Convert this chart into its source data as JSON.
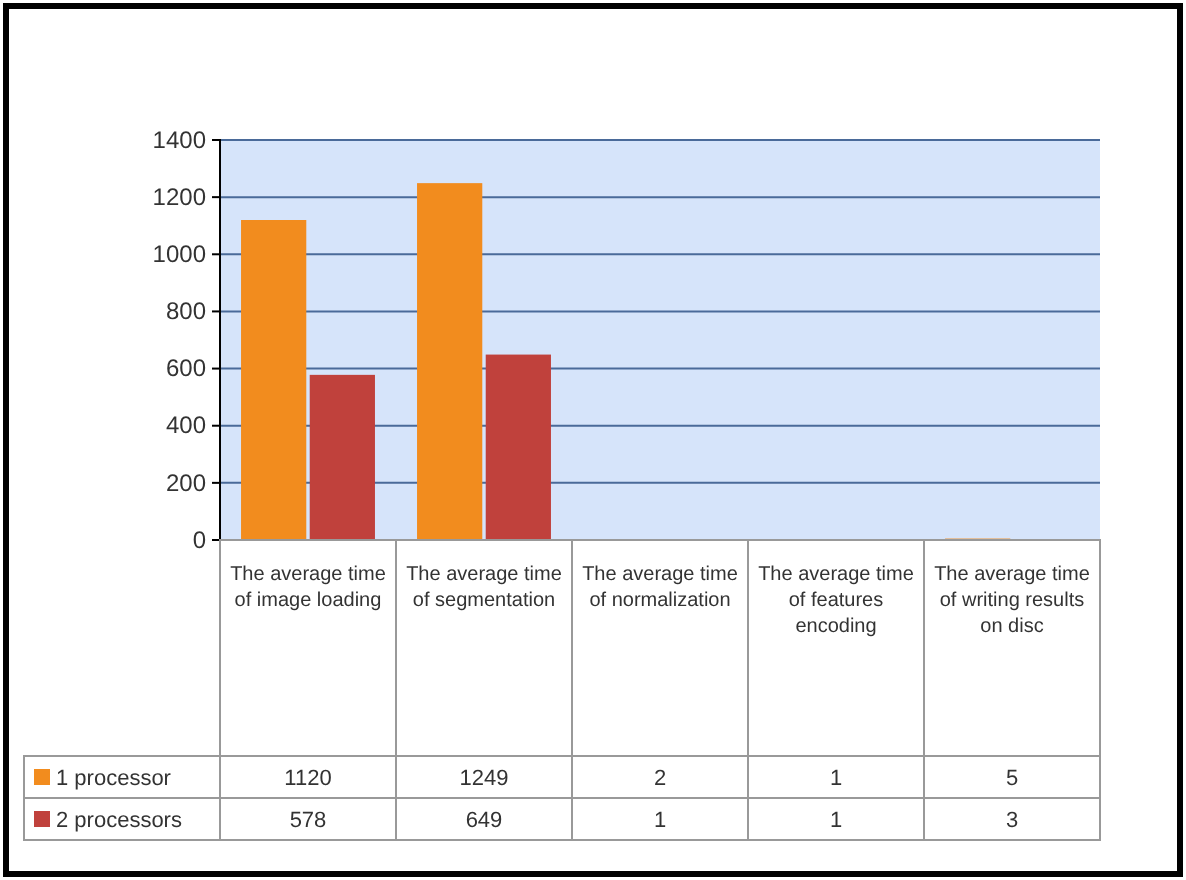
{
  "chart_data": {
    "type": "bar",
    "categories": [
      "The average time of image loading",
      "The average time of segmentation",
      "The average time of normalization",
      "The average time of features encoding",
      "The average time of writing results on disc"
    ],
    "series": [
      {
        "name": "1 processor",
        "color": "#f28c1e",
        "values": [
          1120,
          1249,
          2,
          1,
          5
        ]
      },
      {
        "name": "2 processors",
        "color": "#c0413c",
        "values": [
          578,
          649,
          1,
          1,
          3
        ]
      }
    ],
    "ylim": [
      0,
      1400
    ],
    "yticks": [
      0,
      200,
      400,
      600,
      800,
      1000,
      1200,
      1400
    ],
    "grid": "y",
    "legend": "bottom",
    "data_labels": true
  }
}
